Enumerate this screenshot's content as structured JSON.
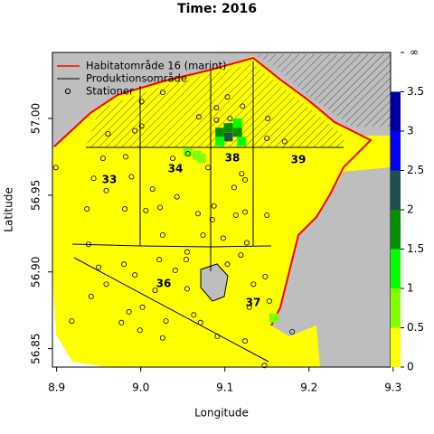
{
  "chart_data": {
    "type": "map",
    "title": "Time: 2016",
    "x_label": "Longitude",
    "y_label": "Latitude",
    "xlim": [
      8.895,
      9.297
    ],
    "ylim": [
      56.838,
      57.043
    ],
    "xticks": [
      8.9,
      {
        "value": 9,
        "label": "9.0"
      },
      9.1,
      9.2,
      9.3
    ],
    "yticks": [
      56.85,
      {
        "value": 56.9,
        "label": "56.90"
      },
      56.95,
      {
        "value": 57,
        "label": "57.00"
      }
    ],
    "legend": [
      {
        "name": "Habitatområde 16 (marint)",
        "color": "#ff0000"
      },
      {
        "name": "Produktionsområde",
        "color": "#000000"
      },
      {
        "name": "Stationer",
        "color": "#000000"
      }
    ],
    "areas": [
      "33",
      "34",
      "36",
      "37",
      "38",
      "39"
    ],
    "colorbar": {
      "ticks": [
        0,
        0.5,
        1,
        1.5,
        2,
        2.5,
        3,
        3.5
      ],
      "top_label": "∞",
      "colors": [
        "#ffff00",
        "#80ff00",
        "#00ff00",
        "#009000",
        "#1f5050",
        "#0000ff",
        "#0000a0"
      ]
    },
    "cells": {
      "lon": [
        9.104,
        9.094,
        9.115,
        9.104,
        9.094,
        9.115,
        9.12,
        9.067,
        9.072,
        9.158,
        9.056
      ],
      "lat": [
        56.988,
        56.991,
        56.991,
        56.994,
        56.985,
        56.997,
        56.985,
        56.976,
        56.974,
        56.87,
        56.978
      ],
      "values": [
        2.2,
        1.7,
        1.7,
        1.7,
        1.2,
        1.2,
        1.2,
        0.7,
        0.7,
        0.7,
        0.7
      ]
    },
    "stations": {
      "lon": [
        8.899,
        8.944,
        8.959,
        8.955,
        8.936,
        8.938,
        8.95,
        8.959,
        8.941,
        8.918,
        8.981,
        8.989,
        8.982,
        8.961,
        8.993,
        9.001,
        9.001,
        9.026,
        9.038,
        9.014,
        9.006,
        9.023,
        9.043,
        9.026,
        9.055,
        9.054,
        9.041,
        9.022,
        8.993,
        8.98,
        9.017,
        9.002,
        8.986,
        8.977,
        8.999,
        9.03,
        9.026,
        9.055,
        9.063,
        9.071,
        9.056,
        9.08,
        9.068,
        9.087,
        9.085,
        9.074,
        9.098,
        9.103,
        9.119,
        9.113,
        9.124,
        9.126,
        9.111,
        9.12,
        9.124,
        9.09,
        9.09,
        9.103,
        9.106,
        9.121,
        9.069,
        9.151,
        9.15,
        9.171,
        9.15,
        9.134,
        9.148,
        9.153,
        9.129,
        9.124,
        9.091,
        9.147,
        9.18
      ],
      "lat": [
        56.968,
        56.961,
        56.953,
        56.974,
        56.941,
        56.918,
        56.903,
        56.892,
        56.884,
        56.868,
        56.941,
        56.962,
        56.975,
        56.99,
        56.992,
        56.995,
        57.011,
        57.017,
        56.974,
        56.954,
        56.94,
        56.942,
        56.949,
        56.924,
        56.913,
        56.908,
        56.901,
        56.908,
        56.898,
        56.905,
        56.888,
        56.877,
        56.874,
        56.867,
        56.862,
        56.868,
        56.857,
        56.889,
        56.872,
        56.867,
        56.977,
        56.968,
        56.938,
        56.943,
        56.934,
        56.924,
        56.922,
        56.905,
        56.911,
        56.937,
        56.939,
        56.919,
        56.955,
        56.964,
        56.96,
        56.999,
        57.007,
        57.014,
        57.0,
        57.008,
        57.001,
        57.0,
        56.987,
        56.985,
        56.937,
        56.892,
        56.897,
        56.881,
        56.877,
        56.855,
        56.858,
        56.839,
        56.861
      ]
    }
  }
}
